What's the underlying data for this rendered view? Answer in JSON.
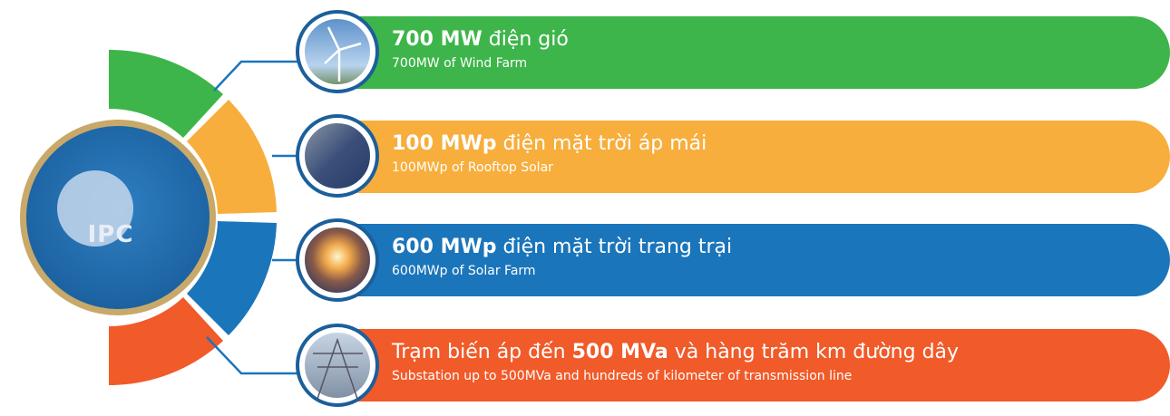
{
  "logo": {
    "text": "IPC"
  },
  "items": [
    {
      "title_bold": "700 MW",
      "title_after": "điện gió",
      "subtitle": "700MW of Wind Farm"
    },
    {
      "title_bold": "100 MWp",
      "title_after": "điện mặt trời áp mái",
      "subtitle": "100MWp of Rooftop Solar"
    },
    {
      "title_bold": "600 MWp",
      "title_after": "điện mặt trời trang trại",
      "subtitle": "600MWp of Solar Farm"
    },
    {
      "title_before": "Trạm biến áp đến",
      "title_bold": "500 MVa",
      "title_after": "và hàng trăm km đường dây",
      "subtitle": "Substation up to 500MVa and hundreds of kilometer of transmission line"
    }
  ]
}
